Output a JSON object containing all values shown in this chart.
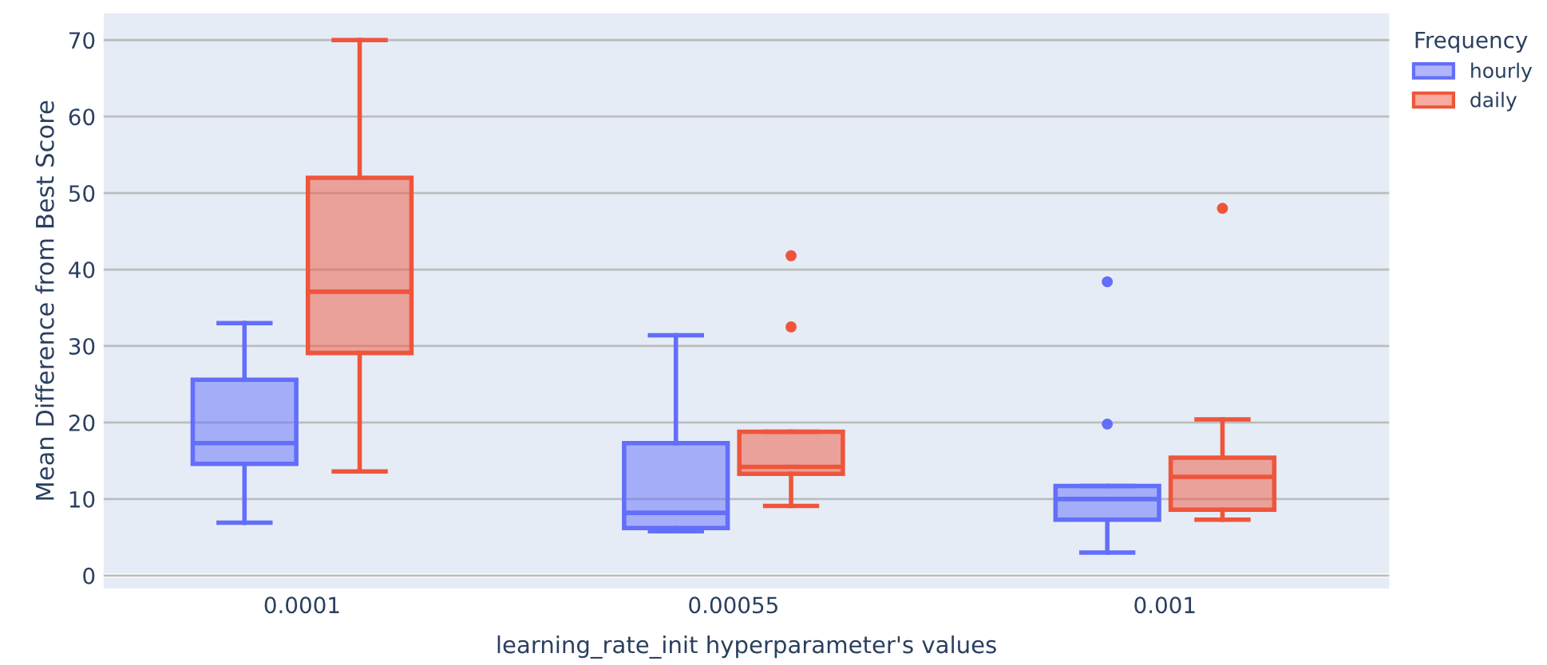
{
  "chart_data": {
    "type": "box",
    "xlabel": "learning_rate_init hyperparameter's values",
    "ylabel": "Mean Difference from Best Score",
    "legend_title": "Frequency",
    "legend": "top right",
    "grid": "y",
    "categories": [
      "0.0001",
      "0.00055",
      "0.001"
    ],
    "ylim": [
      -1.7,
      73.5
    ],
    "yticks": [
      0,
      10,
      20,
      30,
      40,
      50,
      60,
      70
    ],
    "series": [
      {
        "name": "hourly",
        "color": "#636efa",
        "boxes": [
          {
            "low": 6.9,
            "q1": 14.6,
            "median": 17.3,
            "q3": 25.6,
            "high": 33.0
          },
          {
            "low": 5.8,
            "q1": 6.2,
            "median": 8.2,
            "q3": 17.3,
            "high": 31.4
          },
          {
            "low": 3.0,
            "q1": 7.3,
            "median": 10.0,
            "q3": 11.7,
            "high": 11.7,
            "outliers": [
              38.4,
              19.8
            ]
          }
        ]
      },
      {
        "name": "daily",
        "color": "#ef553b",
        "boxes": [
          {
            "low": 13.6,
            "q1": 29.1,
            "median": 37.1,
            "q3": 52.0,
            "high": 70.0
          },
          {
            "low": 9.1,
            "q1": 13.3,
            "median": 14.2,
            "q3": 18.8,
            "high": 18.8,
            "outliers": [
              41.8,
              32.5
            ]
          },
          {
            "low": 7.3,
            "q1": 8.6,
            "median": 12.9,
            "q3": 15.4,
            "high": 20.4,
            "outliers": [
              48.0
            ]
          }
        ]
      }
    ]
  }
}
